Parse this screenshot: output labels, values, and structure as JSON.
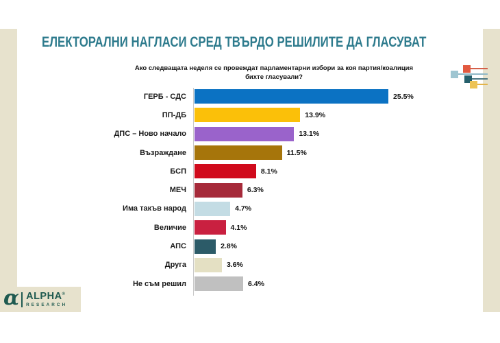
{
  "page": {
    "title": "ЕЛЕКТОРАЛНИ НАГЛАСИ СРЕД ТВЪРДО РЕШИЛИТЕ ДА ГЛАСУВАТ",
    "title_color": "#2E7B8D",
    "frame_color": "#E7E2CD"
  },
  "chart_data": {
    "type": "bar",
    "orientation": "horizontal",
    "title": "ЕЛЕКТОРАЛНИ НАГЛАСИ СРЕД ТВЪРДО РЕШИЛИТЕ ДА ГЛАСУВАТ",
    "question": "Ако следващата неделя се провеждат парламентарни избори за коя партия/коалиция\nбихте гласували?",
    "categories": [
      "ГЕРБ - СДС",
      "ПП-ДБ",
      "ДПС – Ново начало",
      "Възраждане",
      "БСП",
      "МЕЧ",
      "Има такъв народ",
      "Величие",
      "АПС",
      "Друга",
      "Не съм решил"
    ],
    "values": [
      25.5,
      13.9,
      13.1,
      11.5,
      8.1,
      6.3,
      4.7,
      4.1,
      2.8,
      3.6,
      6.4
    ],
    "value_labels": [
      "25.5%",
      "13.9%",
      "13.1%",
      "11.5%",
      "8.1%",
      "6.3%",
      "4.7%",
      "4.1%",
      "2.8%",
      "3.6%",
      "6.4%"
    ],
    "bar_colors": [
      "#0B72C3",
      "#FBC009",
      "#9A63CB",
      "#A6750B",
      "#D00A1C",
      "#A62A3A",
      "#C3DCE4",
      "#C92040",
      "#2C5B68",
      "#E4E0C3",
      "#C0C0C0"
    ],
    "xlim": [
      0,
      28
    ],
    "grid": false,
    "legend": "none",
    "axis_line_color": "#C9C9C9"
  },
  "decor": {
    "squares": [
      {
        "name": "red",
        "color": "#E2593F",
        "line_color": "#D4604A"
      },
      {
        "name": "light-blue",
        "color": "#9EC5D1",
        "line_color": "#8FB8C6"
      },
      {
        "name": "dark-teal",
        "color": "#255F6B",
        "line_color": "#4A7580"
      },
      {
        "name": "yellow",
        "color": "#EDC355",
        "line_color": "#E3B44A"
      }
    ]
  },
  "logo": {
    "glyph": "α",
    "brand": "ALPHA",
    "reg": "®",
    "sub": "RESEARCH",
    "color": "#1F5A50"
  }
}
